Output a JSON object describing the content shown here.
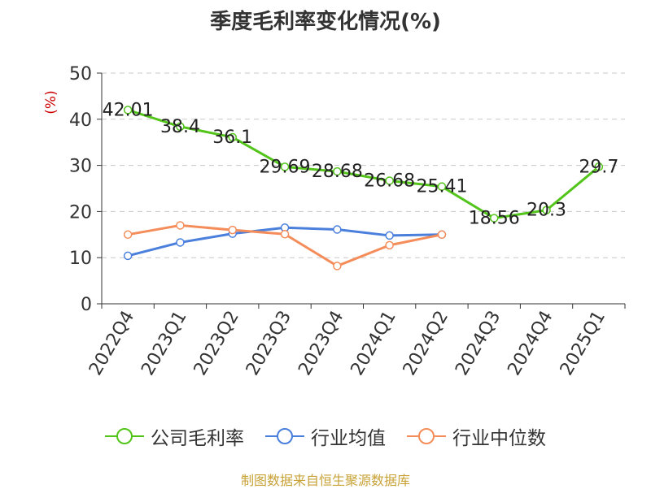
{
  "chart_data": {
    "type": "line",
    "title": "季度毛利率变化情况(%)",
    "ylabel": "(%)",
    "xlabel": "",
    "ylim": [
      0,
      50
    ],
    "yticks": [
      0,
      10,
      20,
      30,
      40,
      50
    ],
    "grid": true,
    "legend_position": "bottom",
    "categories": [
      "2022Q4",
      "2023Q1",
      "2023Q2",
      "2023Q3",
      "2023Q4",
      "2024Q1",
      "2024Q2",
      "2024Q3",
      "2024Q4",
      "2025Q1"
    ],
    "series": [
      {
        "name": "公司毛利率",
        "color": "#52c41a",
        "values": [
          42.01,
          38.4,
          36.1,
          29.69,
          28.68,
          26.68,
          25.41,
          18.56,
          20.3,
          29.7
        ],
        "labels": [
          "42.01",
          "38.4",
          "36.1",
          "29.69",
          "28.68",
          "26.68",
          "25.41",
          "18.56",
          "20.3",
          "29.7"
        ]
      },
      {
        "name": "行业均值",
        "color": "#4a7fdc",
        "values": [
          10.4,
          13.3,
          15.2,
          16.5,
          16.1,
          14.8,
          15.0,
          null,
          null,
          null
        ]
      },
      {
        "name": "行业中位数",
        "color": "#f58d5a",
        "values": [
          15.0,
          17.0,
          16.0,
          15.1,
          8.2,
          12.7,
          15.0,
          null,
          null,
          null
        ]
      }
    ]
  },
  "source": "制图数据来自恒生聚源数据库",
  "icons": {
    "legend_marker": "line-circle-icon"
  }
}
